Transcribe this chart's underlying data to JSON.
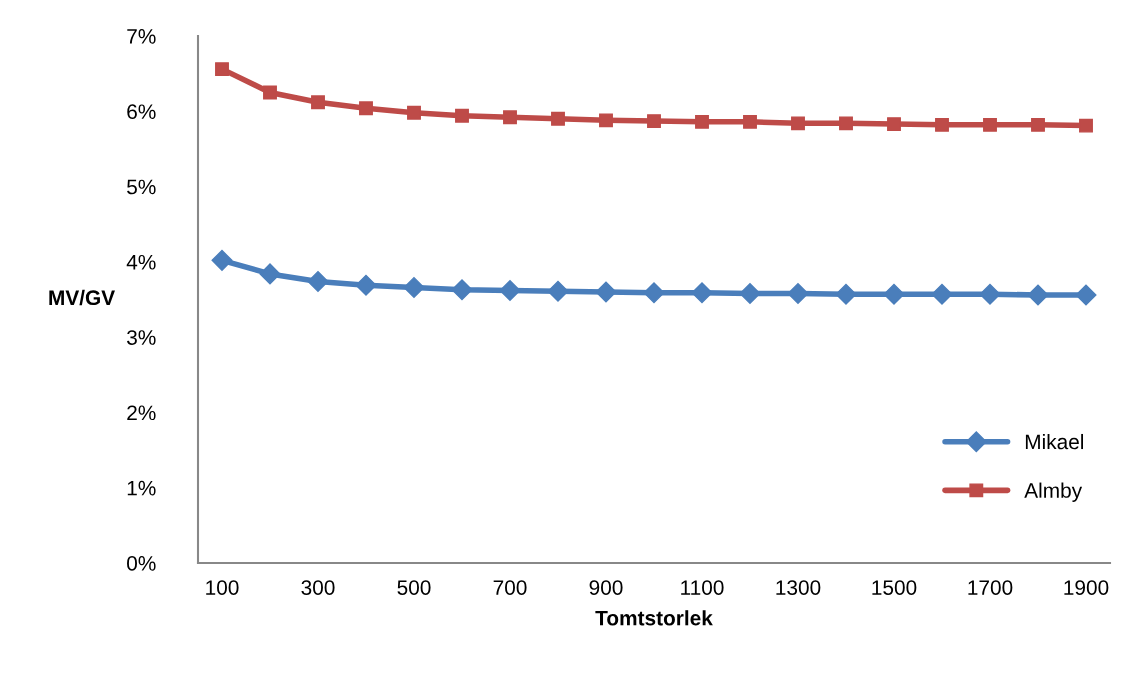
{
  "chart_data": {
    "type": "line",
    "xlabel": "Tomtstorlek",
    "ylabel": "MV/GV",
    "categories": [
      "100",
      null,
      "300",
      null,
      "500",
      null,
      "700",
      null,
      "900",
      null,
      "1100",
      null,
      "1300",
      null,
      "1500",
      null,
      "1700",
      null,
      "1900"
    ],
    "series": [
      {
        "name": "Mikael",
        "color": "#4a7ebb",
        "marker": "diamond",
        "values": [
          4.02,
          3.84,
          3.74,
          3.69,
          3.66,
          3.63,
          3.62,
          3.61,
          3.6,
          3.59,
          3.59,
          3.58,
          3.58,
          3.57,
          3.57,
          3.57,
          3.57,
          3.56,
          3.56
        ]
      },
      {
        "name": "Almby",
        "color": "#be4b48",
        "marker": "square",
        "values": [
          6.56,
          6.25,
          6.12,
          6.04,
          5.98,
          5.94,
          5.92,
          5.9,
          5.88,
          5.87,
          5.86,
          5.86,
          5.84,
          5.84,
          5.83,
          5.82,
          5.82,
          5.82,
          5.81
        ]
      }
    ],
    "ylim": [
      0,
      7
    ],
    "yticks": [
      {
        "value": 0,
        "label": "0%"
      },
      {
        "value": 1,
        "label": "1%"
      },
      {
        "value": 2,
        "label": "2%"
      },
      {
        "value": 3,
        "label": "3%"
      },
      {
        "value": 4,
        "label": "4%"
      },
      {
        "value": 5,
        "label": "5%"
      },
      {
        "value": 6,
        "label": "6%"
      },
      {
        "value": 7,
        "label": "7%"
      }
    ],
    "grid": false,
    "legend": "right",
    "line_style": "solid"
  }
}
